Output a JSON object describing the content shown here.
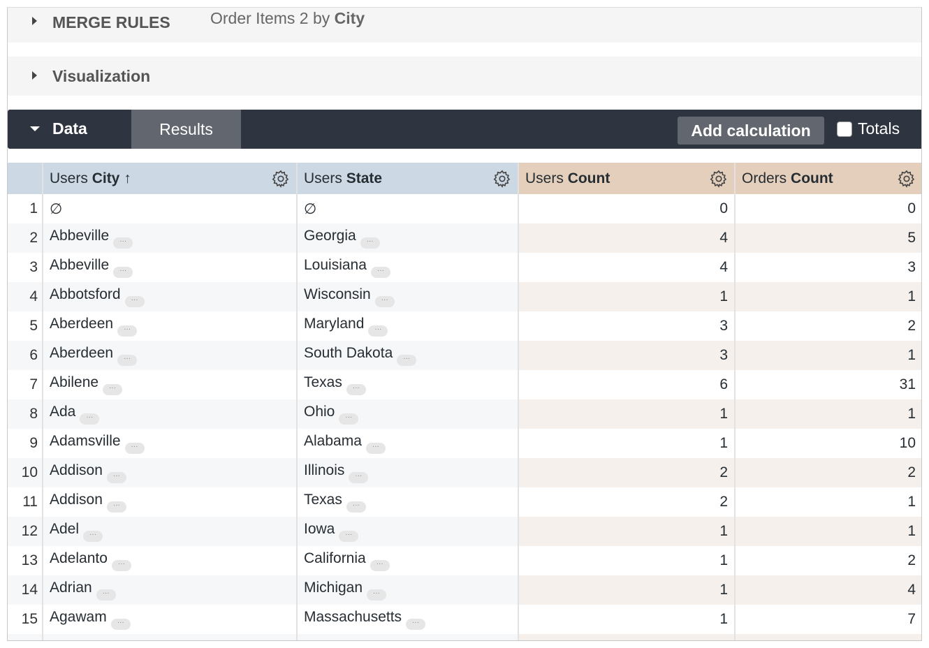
{
  "merge_rules": {
    "label": "MERGE RULES",
    "title_prefix": "Order Items 2 by",
    "title_strong": "City"
  },
  "visualization": {
    "label": "Visualization"
  },
  "data_bar": {
    "data_tab": "Data",
    "results_tab": "Results",
    "add_calculation": "Add calculation",
    "totals_label": "Totals",
    "totals_checked": false
  },
  "columns": [
    {
      "prefix": "Users",
      "strong": "City",
      "sort": "↑",
      "type": "dimension"
    },
    {
      "prefix": "Users",
      "strong": "State",
      "sort": "",
      "type": "dimension"
    },
    {
      "prefix": "Users",
      "strong": "Count",
      "sort": "",
      "type": "measure"
    },
    {
      "prefix": "Orders",
      "strong": "Count",
      "sort": "",
      "type": "measure"
    }
  ],
  "colors": {
    "dimension_header": "#ccd8e4",
    "measure_header": "#e3cfbb",
    "bar": "#2e3440"
  },
  "rows": [
    [
      "1",
      "∅",
      "∅",
      "0",
      "0"
    ],
    [
      "2",
      "Abbeville",
      "Georgia",
      "4",
      "5"
    ],
    [
      "3",
      "Abbeville",
      "Louisiana",
      "4",
      "3"
    ],
    [
      "4",
      "Abbotsford",
      "Wisconsin",
      "1",
      "1"
    ],
    [
      "5",
      "Aberdeen",
      "Maryland",
      "3",
      "2"
    ],
    [
      "6",
      "Aberdeen",
      "South Dakota",
      "3",
      "1"
    ],
    [
      "7",
      "Abilene",
      "Texas",
      "6",
      "31"
    ],
    [
      "8",
      "Ada",
      "Ohio",
      "1",
      "1"
    ],
    [
      "9",
      "Adamsville",
      "Alabama",
      "1",
      "10"
    ],
    [
      "10",
      "Addison",
      "Illinois",
      "2",
      "2"
    ],
    [
      "11",
      "Addison",
      "Texas",
      "2",
      "1"
    ],
    [
      "12",
      "Adel",
      "Iowa",
      "1",
      "1"
    ],
    [
      "13",
      "Adelanto",
      "California",
      "1",
      "2"
    ],
    [
      "14",
      "Adrian",
      "Michigan",
      "1",
      "4"
    ],
    [
      "15",
      "Agawam",
      "Massachusetts",
      "1",
      "7"
    ]
  ]
}
